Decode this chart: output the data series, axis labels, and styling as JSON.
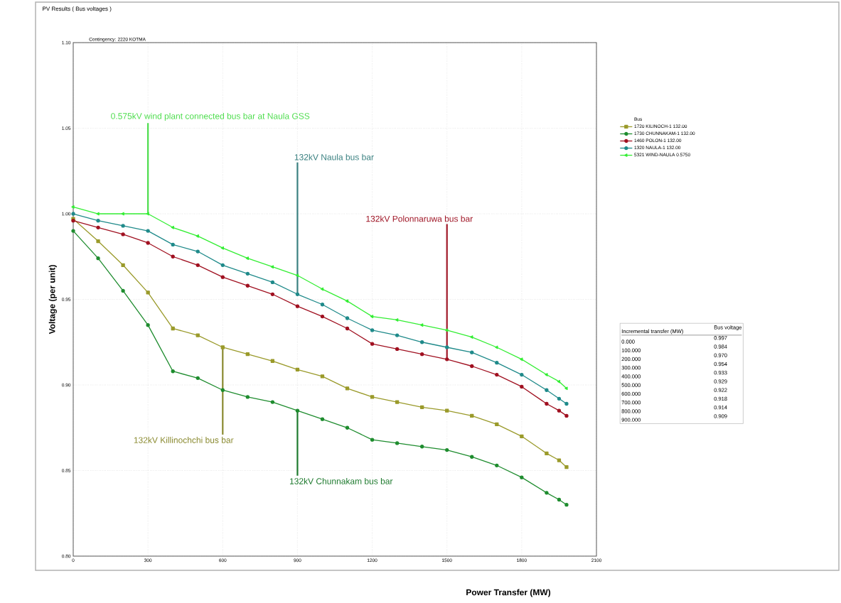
{
  "chart_data": {
    "type": "line",
    "title": "PV Results ( Bus voltages )",
    "subtitle": "Contingency:  2220 KOTMA",
    "xlabel": "Power Transfer (MW)",
    "ylabel": "Voltage (per unit)",
    "legend_title": "Bus",
    "x": [
      0,
      100,
      200,
      300,
      400,
      500,
      600,
      700,
      800,
      900,
      1000,
      1100,
      1200,
      1300,
      1400,
      1500,
      1600,
      1700,
      1800,
      1900,
      1950,
      1980
    ],
    "series": [
      {
        "name": "1720 KILINOCH-1  132.00",
        "color": "#9a9a2a",
        "marker": "square",
        "values": [
          0.997,
          0.984,
          0.97,
          0.954,
          0.933,
          0.929,
          0.922,
          0.918,
          0.914,
          0.909,
          0.905,
          0.898,
          0.893,
          0.89,
          0.887,
          0.885,
          0.882,
          0.877,
          0.87,
          0.86,
          0.856,
          0.852
        ]
      },
      {
        "name": "1730 CHUNNAKAM-1 132.00",
        "color": "#1e8c2e",
        "marker": "circle",
        "values": [
          0.99,
          0.974,
          0.955,
          0.935,
          0.908,
          0.904,
          0.897,
          0.893,
          0.89,
          0.885,
          0.88,
          0.875,
          0.868,
          0.866,
          0.864,
          0.862,
          0.858,
          0.853,
          0.846,
          0.837,
          0.833,
          0.83
        ]
      },
      {
        "name": "1460 POLON-1    132.00",
        "color": "#a01020",
        "marker": "circle",
        "values": [
          0.996,
          0.992,
          0.988,
          0.983,
          0.975,
          0.97,
          0.963,
          0.958,
          0.953,
          0.946,
          0.94,
          0.933,
          0.924,
          0.921,
          0.918,
          0.915,
          0.911,
          0.906,
          0.899,
          0.889,
          0.885,
          0.882
        ]
      },
      {
        "name": "1320 NAULA-1    132.00",
        "color": "#1f8a8a",
        "marker": "circle",
        "values": [
          1.0,
          0.996,
          0.993,
          0.99,
          0.982,
          0.978,
          0.97,
          0.965,
          0.96,
          0.953,
          0.947,
          0.939,
          0.932,
          0.929,
          0.925,
          0.922,
          0.919,
          0.913,
          0.906,
          0.897,
          0.892,
          0.889
        ]
      },
      {
        "name": "5321 WIND-NAULA  0.5750",
        "color": "#33ee33",
        "marker": "triangle",
        "values": [
          1.004,
          1.0,
          1.0,
          1.0,
          0.992,
          0.987,
          0.98,
          0.974,
          0.969,
          0.964,
          0.956,
          0.949,
          0.94,
          0.938,
          0.935,
          0.932,
          0.928,
          0.922,
          0.915,
          0.906,
          0.902,
          0.898
        ]
      }
    ],
    "xlim": [
      0,
      2100
    ],
    "xticks": [
      0,
      300,
      600,
      900,
      1200,
      1500,
      1800,
      2100
    ],
    "ylim": [
      0.8,
      1.1
    ],
    "yticks": [
      {
        "value": 0.8,
        "label": "0.80"
      },
      {
        "value": 0.85,
        "label": "0.85"
      },
      {
        "value": 0.9,
        "label": "0.90"
      },
      {
        "value": 0.95,
        "label": "0.95"
      },
      {
        "value": 1.0,
        "label": "1.00"
      },
      {
        "value": 1.05,
        "label": "1.05"
      },
      {
        "value": 1.1,
        "label": "1.10"
      }
    ],
    "grid": true,
    "legend": "right",
    "line_style": "solid",
    "annotations": [
      {
        "text": "0.575kV wind plant connected bus bar at Naula GSS",
        "x": 300,
        "y": 1.0
      },
      {
        "text": "132kV Naula bus bar",
        "x": 900,
        "y": 0.953
      },
      {
        "text": "132kV Polonnaruwa bus bar",
        "x": 1500,
        "y": 0.915
      },
      {
        "text": "132kV Killinochchi bus bar",
        "x": 600,
        "y": 0.922
      },
      {
        "text": "132kV Chunnakam bus bar",
        "x": 900,
        "y": 0.885
      },
      "Incremental transfer (MW)",
      "Bus voltage",
      "0.000",
      "0.997",
      "100.000",
      "0.984",
      "200.000",
      "0.970",
      "300.000",
      "0.954",
      "400.000",
      "0.933",
      "500.000",
      "0.929",
      "600.000",
      "0.922",
      "700.000",
      "0.918",
      "800.000",
      "0.914",
      "900.000",
      "0.909"
    ]
  }
}
